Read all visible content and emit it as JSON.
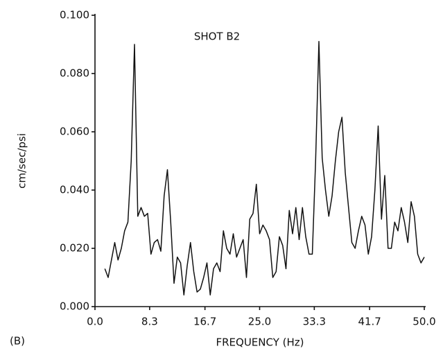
{
  "chart_data": {
    "type": "line",
    "annotation": "SHOT B2",
    "panel_label": "(B)",
    "x_label": "FREQUENCY (Hz)",
    "y_label": "cm/sec/psi",
    "xlim": [
      0,
      50
    ],
    "ylim": [
      0,
      0.1
    ],
    "xticks": [
      {
        "value": 0,
        "label": "0.0"
      },
      8.3,
      16.7,
      {
        "value": 25,
        "label": "25.0"
      },
      33.3,
      41.7,
      {
        "value": 50,
        "label": "50.0"
      }
    ],
    "yticks": [
      {
        "value": 0,
        "label": "0.000"
      },
      {
        "value": 0.02,
        "label": "0.020"
      },
      {
        "value": 0.04,
        "label": "0.040"
      },
      {
        "value": 0.06,
        "label": "0.060"
      },
      {
        "value": 0.08,
        "label": "0.080"
      },
      {
        "value": 0.1,
        "label": "0.100"
      }
    ],
    "grid": false,
    "series": [
      {
        "color": "#111111",
        "x": [
          1.5,
          2,
          2.5,
          3,
          3.5,
          4,
          4.5,
          5,
          5.5,
          6,
          6.5,
          7,
          7.5,
          8,
          8.5,
          9,
          9.5,
          10,
          10.5,
          11,
          11.5,
          12,
          12.5,
          13,
          13.5,
          14,
          14.5,
          15,
          15.5,
          16,
          16.5,
          17,
          17.5,
          18,
          18.5,
          19,
          19.5,
          20,
          20.5,
          21,
          21.5,
          22,
          22.5,
          23,
          23.5,
          24,
          24.5,
          25,
          25.5,
          26,
          26.5,
          27,
          27.5,
          28,
          28.5,
          29,
          29.5,
          30,
          30.5,
          31,
          31.5,
          32,
          32.5,
          33,
          33.5,
          34,
          34.5,
          35,
          35.5,
          36,
          36.5,
          37,
          37.5,
          38,
          38.5,
          39,
          39.5,
          40,
          40.5,
          41,
          41.5,
          42,
          42.5,
          43,
          43.5,
          44,
          44.5,
          45,
          45.5,
          46,
          46.5,
          47,
          47.5,
          48,
          48.5,
          49,
          49.5,
          50
        ],
        "values": [
          0.013,
          0.01,
          0.016,
          0.022,
          0.016,
          0.02,
          0.026,
          0.029,
          0.05,
          0.09,
          0.031,
          0.034,
          0.031,
          0.032,
          0.018,
          0.022,
          0.023,
          0.019,
          0.038,
          0.047,
          0.029,
          0.008,
          0.017,
          0.015,
          0.004,
          0.014,
          0.022,
          0.012,
          0.005,
          0.006,
          0.01,
          0.015,
          0.004,
          0.013,
          0.015,
          0.012,
          0.026,
          0.02,
          0.018,
          0.025,
          0.017,
          0.02,
          0.023,
          0.01,
          0.03,
          0.032,
          0.042,
          0.025,
          0.028,
          0.026,
          0.023,
          0.01,
          0.012,
          0.024,
          0.021,
          0.013,
          0.033,
          0.025,
          0.034,
          0.023,
          0.034,
          0.024,
          0.018,
          0.018,
          0.05,
          0.091,
          0.051,
          0.04,
          0.031,
          0.038,
          0.05,
          0.06,
          0.065,
          0.046,
          0.034,
          0.022,
          0.02,
          0.026,
          0.031,
          0.028,
          0.018,
          0.024,
          0.04,
          0.062,
          0.03,
          0.045,
          0.02,
          0.02,
          0.029,
          0.026,
          0.034,
          0.029,
          0.022,
          0.036,
          0.031,
          0.018,
          0.015,
          0.017
        ]
      }
    ]
  }
}
